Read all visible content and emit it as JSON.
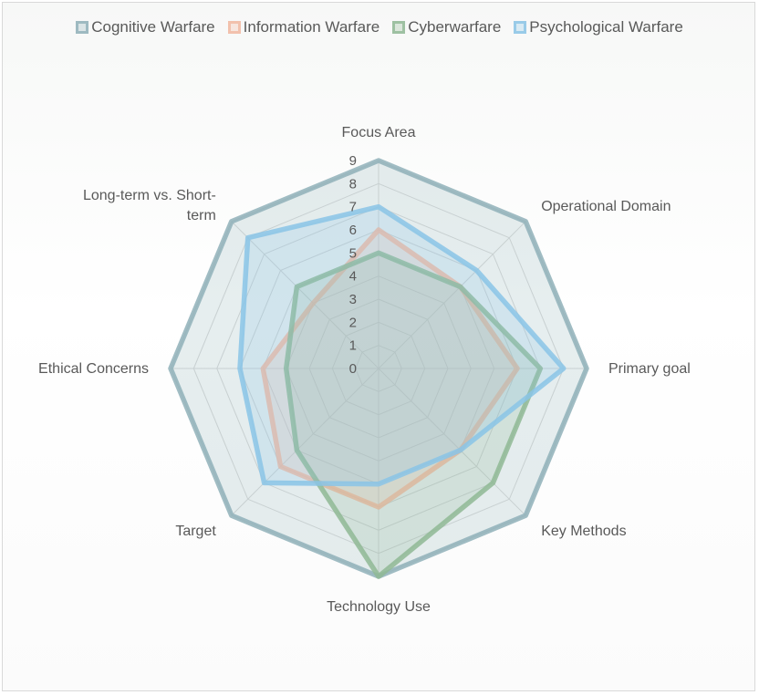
{
  "chart_data": {
    "type": "radar",
    "axes": [
      "Focus Area",
      "Operational Domain",
      "Primary goal",
      "Key Methods",
      "Technology Use",
      "Target",
      "Ethical Concerns",
      "Long-term vs. Short-term"
    ],
    "ticks": [
      "0",
      "1",
      "2",
      "3",
      "4",
      "5",
      "6",
      "7",
      "8",
      "9"
    ],
    "rmin": 0,
    "rmax": 9,
    "series": [
      {
        "name": "Cognitive Warfare",
        "values": [
          9,
          9,
          9,
          9,
          9,
          9,
          9,
          9
        ],
        "color": "#8fb0b8"
      },
      {
        "name": "Information Warfare",
        "values": [
          6,
          5,
          6,
          5,
          6,
          6,
          5,
          4
        ],
        "color": "#f2b8a0"
      },
      {
        "name": "Cyberwarfare",
        "values": [
          5,
          5,
          7,
          7,
          9,
          5,
          4,
          5
        ],
        "color": "#8fb894"
      },
      {
        "name": "Psychological Warfare",
        "values": [
          7,
          6,
          8,
          5,
          5,
          7,
          6,
          8
        ],
        "color": "#89c4e6"
      }
    ],
    "legend_position": "top",
    "grid": true
  }
}
